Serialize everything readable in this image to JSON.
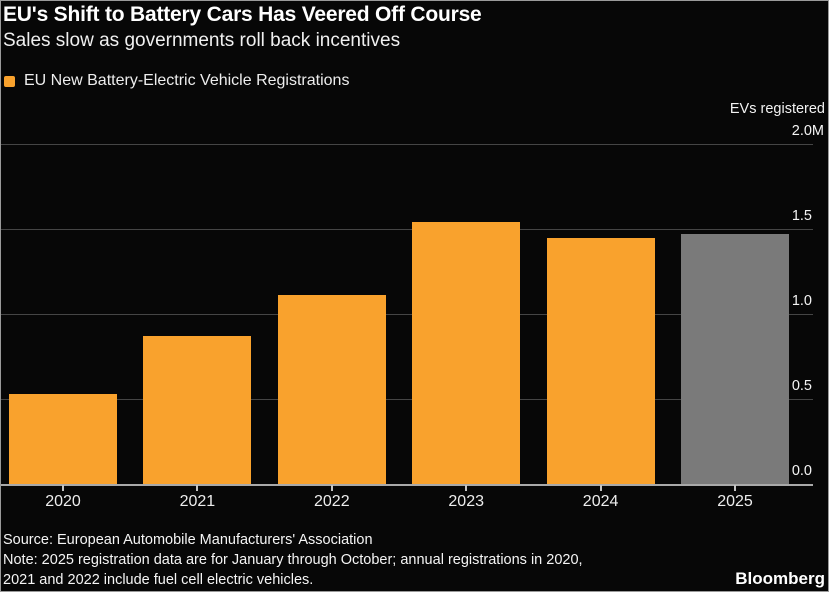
{
  "header": {
    "title": "EU's Shift to Battery Cars Has Veered Off Course",
    "subtitle": "Sales slow as governments roll back incentives"
  },
  "legend": {
    "label": "EU New Battery-Electric Vehicle Registrations",
    "swatch_color": "#F9A22D"
  },
  "chart_data": {
    "type": "bar",
    "title": "EU New Battery-Electric Vehicle Registrations",
    "axis_title": "EVs registered",
    "unit": "millions of EVs registered",
    "categories": [
      "2020",
      "2021",
      "2022",
      "2023",
      "2024",
      "2025"
    ],
    "values": [
      0.53,
      0.87,
      1.11,
      1.54,
      1.45,
      1.47
    ],
    "bar_colors": [
      "#F9A22D",
      "#F9A22D",
      "#F9A22D",
      "#F9A22D",
      "#F9A22D",
      "#7A7A7A"
    ],
    "ylim": [
      0,
      2.0
    ],
    "yticks": [
      {
        "value": 2.0,
        "label": "2.0M"
      },
      {
        "value": 1.5,
        "label": "1.5"
      },
      {
        "value": 1.0,
        "label": "1.0"
      },
      {
        "value": 0.5,
        "label": "0.5"
      },
      {
        "value": 0.0,
        "label": "0.0"
      }
    ],
    "grid": true,
    "ytick_side": "right",
    "legend_position": "top-left"
  },
  "footer": {
    "source": "Source: European Automobile Manufacturers' Association",
    "notes": [
      "Note: 2025 registration data are for January through October; annual registrations in 2020,",
      "2021 and 2022 include fuel cell electric vehicles."
    ],
    "brand": "Bloomberg"
  },
  "colors": {
    "background": "#070707",
    "bar_orange": "#F9A22D",
    "bar_gray": "#7A7A7A",
    "gridline": "#454545",
    "baseline": "#a9a9a9",
    "text": "#FFFFFF"
  }
}
